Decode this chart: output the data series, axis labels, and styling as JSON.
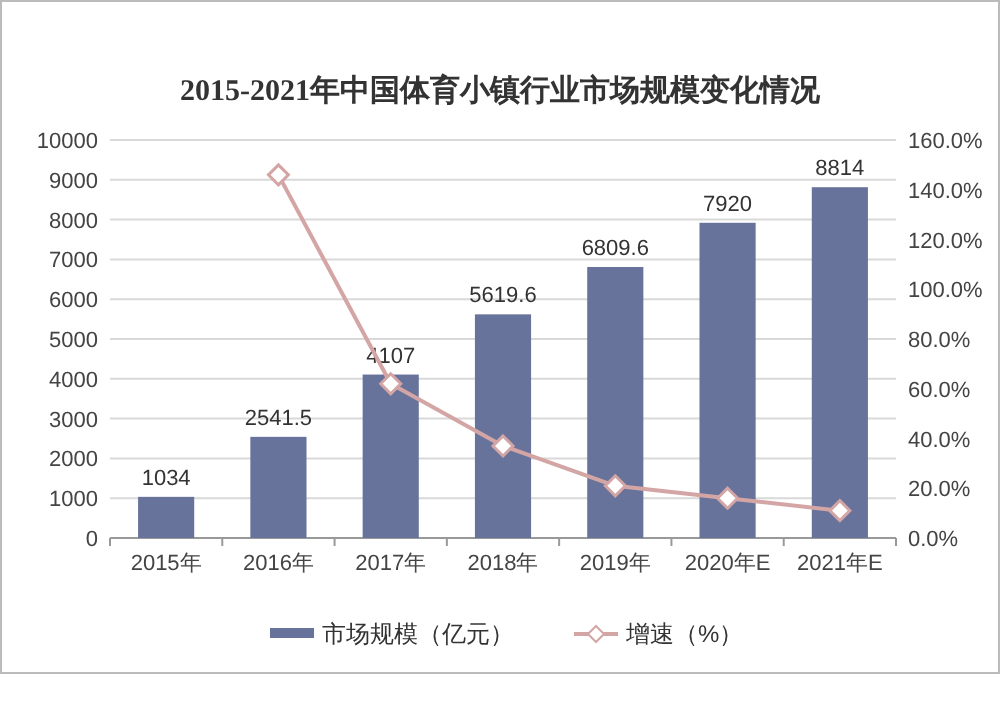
{
  "chart_data": {
    "type": "bar",
    "title": "2015-2021年中国体育小镇行业市场规模变化情况",
    "categories": [
      "2015年",
      "2016年",
      "2017年",
      "2018年",
      "2019年",
      "2020年E",
      "2021年E"
    ],
    "series": [
      {
        "name": "市场规模（亿元）",
        "color": "#67739a",
        "values": [
          1034,
          2541.5,
          4107,
          5619.6,
          6809.6,
          7920,
          8814
        ],
        "value_labels": [
          "1034",
          "2541.5",
          "4107",
          "5619.6",
          "6809.6",
          "7920",
          "8814"
        ]
      },
      {
        "name": "增速（%）",
        "type": "line",
        "axis": "y2",
        "color": "#d4a5a5",
        "marker": "diamond",
        "values": [
          null,
          146,
          62,
          37,
          21,
          16,
          11
        ]
      }
    ],
    "ylim": [
      0,
      10000
    ],
    "yticks": [
      0,
      1000,
      2000,
      3000,
      4000,
      5000,
      6000,
      7000,
      8000,
      9000,
      10000
    ],
    "y2lim": [
      0,
      160
    ],
    "y2ticks": [
      {
        "value": 0,
        "label": "0.0%"
      },
      {
        "value": 20,
        "label": "20.0%"
      },
      {
        "value": 40,
        "label": "40.0%"
      },
      {
        "value": 60,
        "label": "60.0%"
      },
      {
        "value": 80,
        "label": "80.0%"
      },
      {
        "value": 100,
        "label": "100.0%"
      },
      {
        "value": 120,
        "label": "120.0%"
      },
      {
        "value": 140,
        "label": "140.0%"
      },
      {
        "value": 160,
        "label": "160.0%"
      }
    ],
    "grid": "y",
    "legend": "bottom"
  }
}
